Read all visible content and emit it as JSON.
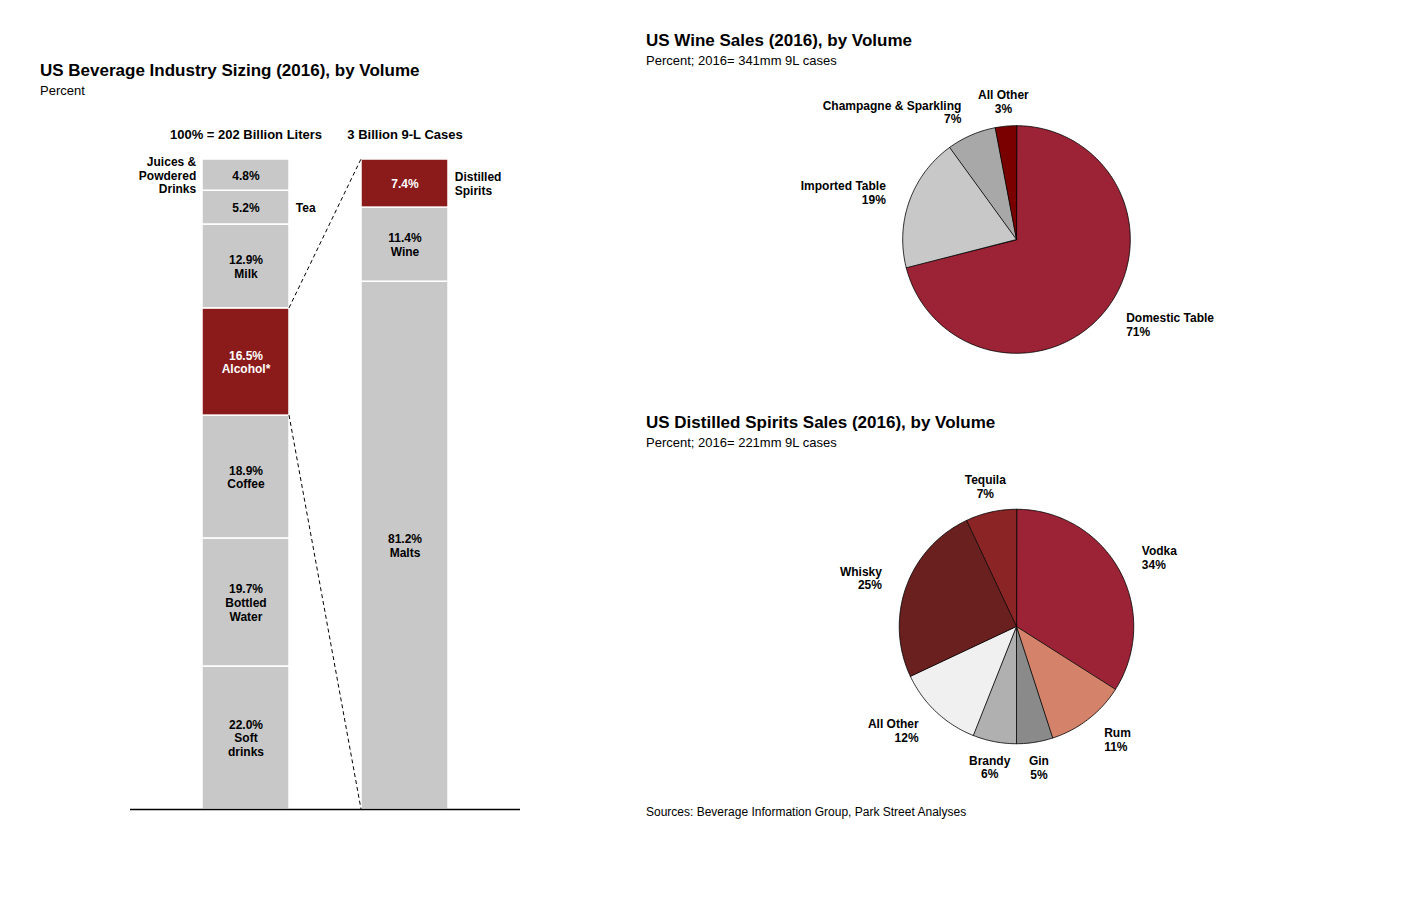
{
  "chart_data": [
    {
      "type": "bar",
      "stacked": true,
      "title": "US Beverage Industry Sizing (2016), by Volume",
      "subtitle": "Percent",
      "annotations": [
        "100% = 202 Billion Liters"
      ],
      "categories": [
        "Soft drinks",
        "Bottled Water",
        "Coffee",
        "Alcohol*",
        "Milk",
        "Tea",
        "Juices & Powdered Drinks"
      ],
      "values": [
        22.0,
        19.7,
        18.9,
        16.5,
        12.9,
        5.2,
        4.8
      ],
      "value_labels": [
        "22.0%",
        "19.7%",
        "18.9%",
        "16.5%",
        "12.9%",
        "5.2%",
        "4.8%"
      ],
      "colors": [
        "#c8c8c8",
        "#c8c8c8",
        "#c8c8c8",
        "#8b1a1a",
        "#c8c8c8",
        "#c8c8c8",
        "#c8c8c8"
      ],
      "data_labels": true,
      "ylim": [
        0,
        100
      ],
      "tick_labels": false,
      "grid": false
    },
    {
      "type": "bar",
      "stacked": true,
      "annotations": [
        "3 Billion 9-L Cases"
      ],
      "categories": [
        "Malts",
        "Wine",
        "Distilled Spirits"
      ],
      "values": [
        81.2,
        11.4,
        7.4
      ],
      "value_labels": [
        "81.2%",
        "11.4%",
        "7.4%"
      ],
      "colors": [
        "#c8c8c8",
        "#c8c8c8",
        "#8b1a1a"
      ],
      "data_labels": true,
      "ylim": [
        0,
        100
      ],
      "tick_labels": false,
      "grid": false
    },
    {
      "type": "pie",
      "title": "US Wine Sales (2016), by Volume",
      "subtitle": "Percent; 2016= 341mm 9L cases",
      "categories": [
        "Domestic Table",
        "Imported Table",
        "Champagne & Sparkling",
        "All Other"
      ],
      "values": [
        71,
        19,
        7,
        3
      ],
      "value_labels": [
        "71%",
        "19%",
        "7%",
        "3%"
      ],
      "colors": [
        "#9b2335",
        "#c8c8c8",
        "#a8a8a8",
        "#7a0000"
      ],
      "data_labels": true
    },
    {
      "type": "pie",
      "title": "US Distilled Spirits Sales (2016), by Volume",
      "subtitle": "Percent; 2016= 221mm 9L cases",
      "categories": [
        "Vodka",
        "Rum",
        "Gin",
        "Brandy",
        "All Other",
        "Whisky",
        "Tequila"
      ],
      "values": [
        34,
        11,
        5,
        6,
        12,
        25,
        7
      ],
      "value_labels": [
        "34%",
        "11%",
        "5%",
        "6%",
        "12%",
        "25%",
        "7%"
      ],
      "colors": [
        "#9b2335",
        "#d4826a",
        "#8a8a8a",
        "#b0b0b0",
        "#f0f0f0",
        "#6b2020",
        "#8b2525"
      ],
      "data_labels": true
    }
  ],
  "caption": "Sources: Beverage Information Group, Park Street Analyses"
}
